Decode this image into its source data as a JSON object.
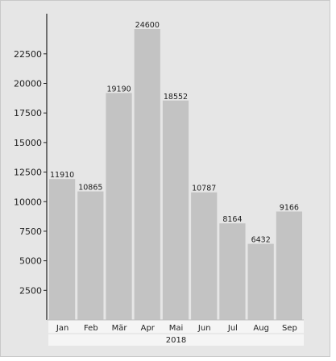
{
  "colors": {
    "panel_background": "#e6e6e6",
    "bar_fill": "#c3c3c3",
    "axis": "#222222",
    "text": "#222222",
    "category_strip": "#f5f5f5"
  },
  "chart_data": {
    "type": "bar",
    "title": "",
    "xlabel": "",
    "ylabel": "",
    "year_label": "2018",
    "categories": [
      "Jan",
      "Feb",
      "Mär",
      "Apr",
      "Mai",
      "Jun",
      "Jul",
      "Aug",
      "Sep"
    ],
    "values": [
      11910,
      10865,
      19190,
      24600,
      18552,
      10787,
      8164,
      6432,
      9166
    ],
    "value_labels": [
      "11910",
      "10865",
      "19190",
      "24600",
      "18552",
      "10787",
      "8164",
      "6432",
      "9166"
    ],
    "yticks": [
      2500,
      5000,
      7500,
      10000,
      12500,
      15000,
      17500,
      20000,
      22500
    ],
    "ytick_labels": [
      "2500",
      "5000",
      "7500",
      "10000",
      "12500",
      "15000",
      "17500",
      "20000",
      "22500"
    ],
    "ylim": [
      0,
      25500
    ],
    "grid": false,
    "legend": "none"
  }
}
